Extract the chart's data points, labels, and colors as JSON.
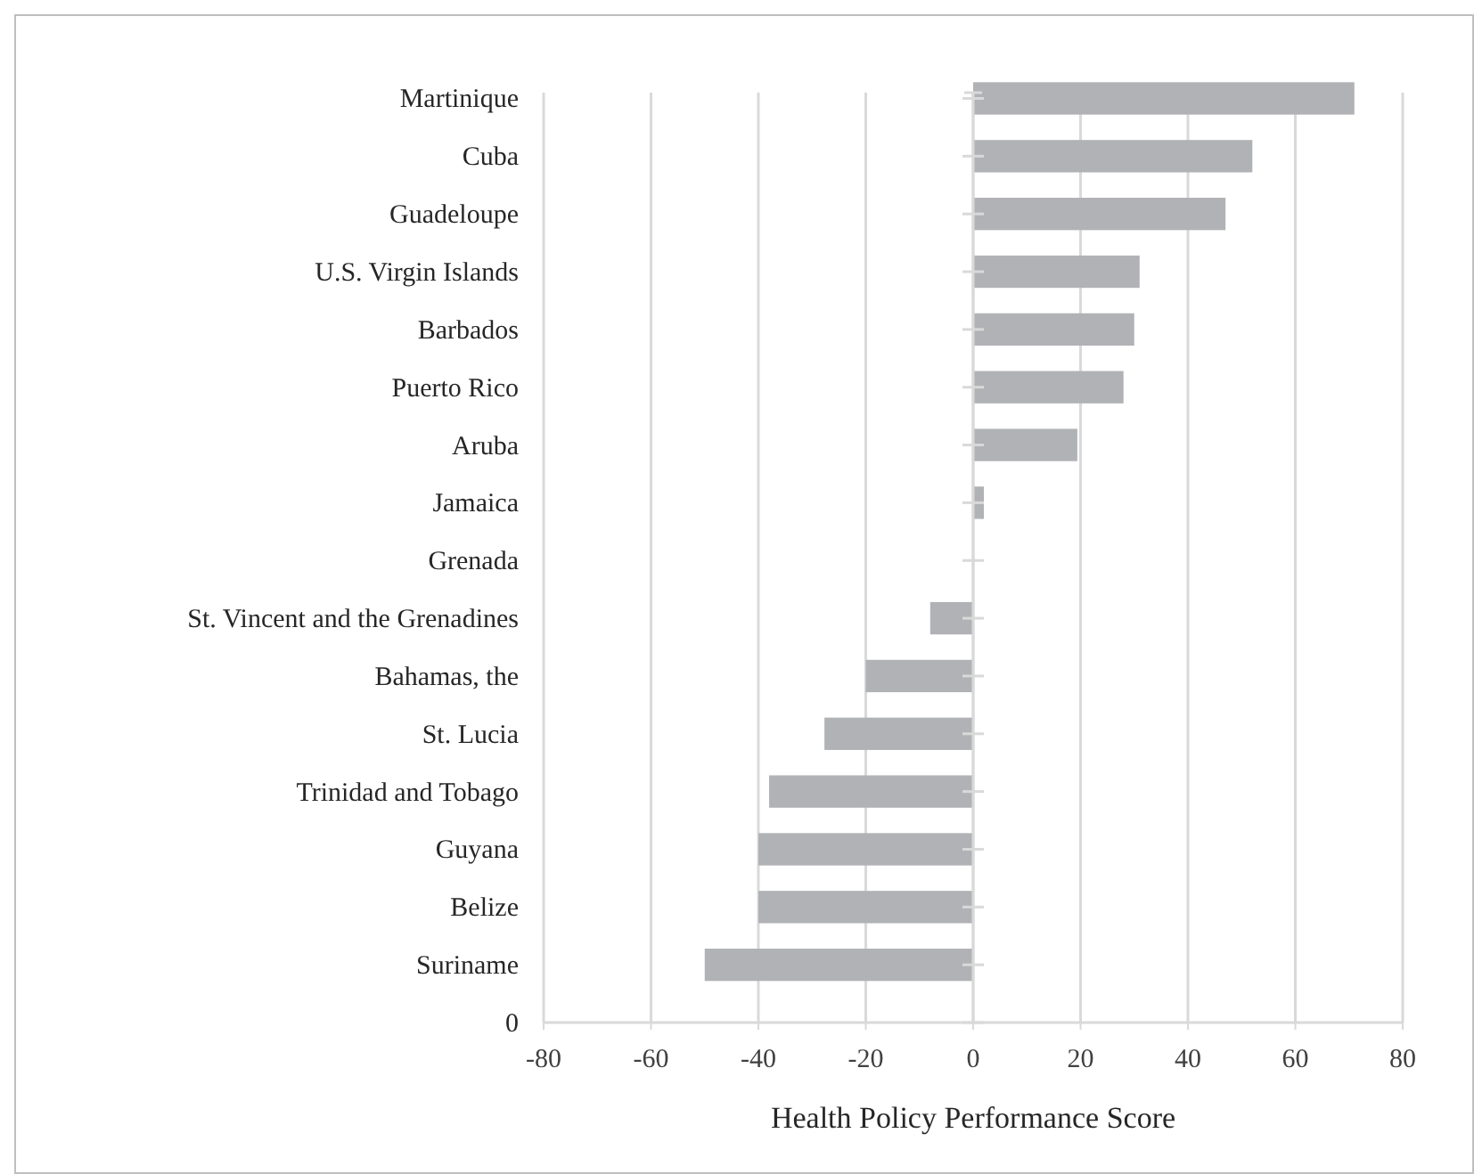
{
  "chart_data": {
    "type": "bar",
    "orientation": "horizontal",
    "xlabel": "Health Policy Performance Score",
    "categories": [
      "Martinique",
      "Cuba",
      "Guadeloupe",
      "U.S. Virgin Islands",
      "Barbados",
      "Puerto Rico",
      "Aruba",
      "Jamaica",
      "Grenada",
      "St. Vincent and the Grenadines",
      "Bahamas, the",
      "St. Lucia",
      "Trinidad and Tobago",
      "Guyana",
      "Belize",
      "Suriname",
      "0"
    ],
    "values": [
      71,
      52,
      47,
      31,
      30,
      28,
      19.4,
      2,
      0,
      -8,
      -20,
      -27.7,
      -38,
      -40,
      -40,
      -50,
      null
    ],
    "color": "#b1b2b5",
    "xlim": [
      -80,
      80
    ],
    "xticks": [
      -80,
      -60,
      -40,
      -20,
      0,
      20,
      40,
      60,
      80
    ],
    "grid": "x"
  }
}
